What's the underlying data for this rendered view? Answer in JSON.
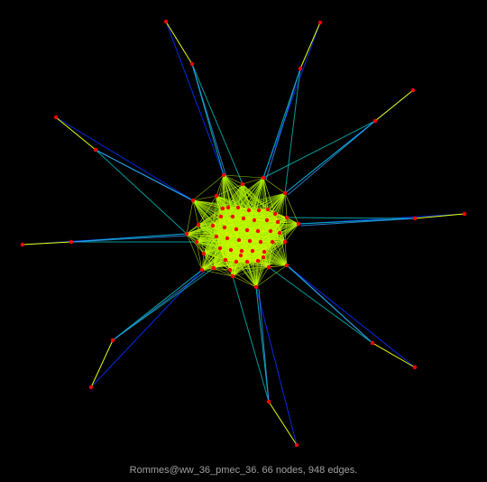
{
  "caption": "Rommes@ww_36_pmec_36. 66 nodes, 948 edges.",
  "colors": {
    "background": "#000000",
    "node": "#ff0000",
    "edge_short": "#e6ff00",
    "edge_mid": "#00c0c0",
    "edge_long": "#0030ff",
    "caption": "#a0a0a0"
  },
  "graph": {
    "node_count": 66,
    "edge_count": 948
  }
}
